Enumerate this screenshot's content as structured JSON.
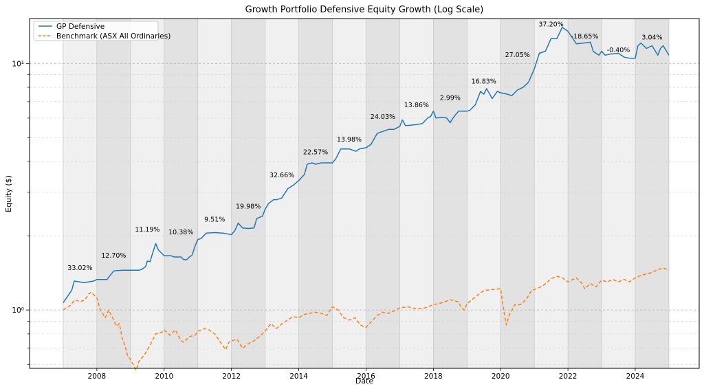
{
  "chart_data": {
    "type": "line",
    "title": "Growth Portfolio Defensive Equity Growth (Log Scale)",
    "xlabel": "Date",
    "ylabel": "Equity ($)",
    "y_scale": "log",
    "ylim": [
      0.58,
      15.2
    ],
    "xlim": [
      2006.0,
      2025.9
    ],
    "x_tick_labels": [
      "2008",
      "2010",
      "2012",
      "2014",
      "2016",
      "2018",
      "2020",
      "2022",
      "2024"
    ],
    "y_tick_labels": [
      "10⁰",
      "10¹"
    ],
    "grid": true,
    "legend_position": "top-left",
    "year_bands": [
      2007,
      2008,
      2009,
      2010,
      2011,
      2012,
      2013,
      2014,
      2015,
      2016,
      2017,
      2018,
      2019,
      2020,
      2021,
      2022,
      2023,
      2024
    ],
    "annual_returns": [
      {
        "year": 2007,
        "label": "33.02%",
        "y": 1.45
      },
      {
        "year": 2008,
        "label": "12.70%",
        "y": 1.63
      },
      {
        "year": 2009,
        "label": "11.19%",
        "y": 2.08
      },
      {
        "year": 2010,
        "label": "10.38%",
        "y": 2.03
      },
      {
        "year": 2011,
        "label": "9.51%",
        "y": 2.28
      },
      {
        "year": 2012,
        "label": "19.98%",
        "y": 2.58
      },
      {
        "year": 2013,
        "label": "32.66%",
        "y": 3.45
      },
      {
        "year": 2014,
        "label": "22.57%",
        "y": 4.28
      },
      {
        "year": 2015,
        "label": "13.98%",
        "y": 4.82
      },
      {
        "year": 2016,
        "label": "24.03%",
        "y": 5.95
      },
      {
        "year": 2017,
        "label": "13.86%",
        "y": 6.65
      },
      {
        "year": 2018,
        "label": "2.99%",
        "y": 7.1
      },
      {
        "year": 2019,
        "label": "16.83%",
        "y": 8.3
      },
      {
        "year": 2020,
        "label": "27.05%",
        "y": 10.6
      },
      {
        "year": 2021,
        "label": "37.20%",
        "y": 14.1
      },
      {
        "year": 2022,
        "label": "-18.65%",
        "y": 12.6
      },
      {
        "year": 2023,
        "label": "-0.40%",
        "y": 11.1
      },
      {
        "year": 2024,
        "label": "3.04%",
        "y": 12.5
      }
    ],
    "series": [
      {
        "name": "GP Defensive",
        "color": "#1f77b4",
        "style": "solid",
        "x": [
          2007.0,
          2007.25,
          2007.33,
          2007.5,
          2007.6,
          2007.75,
          2007.9,
          2008.0,
          2008.1,
          2008.25,
          2008.3,
          2008.5,
          2008.75,
          2009.0,
          2009.25,
          2009.33,
          2009.45,
          2009.5,
          2009.58,
          2009.67,
          2009.75,
          2009.83,
          2010.0,
          2010.2,
          2010.3,
          2010.5,
          2010.58,
          2010.67,
          2010.75,
          2010.83,
          2010.92,
          2011.0,
          2011.1,
          2011.25,
          2011.5,
          2011.75,
          2012.0,
          2012.1,
          2012.2,
          2012.33,
          2012.5,
          2012.67,
          2012.75,
          2012.92,
          2013.0,
          2013.1,
          2013.25,
          2013.35,
          2013.5,
          2013.67,
          2013.83,
          2014.0,
          2014.17,
          2014.25,
          2014.4,
          2014.5,
          2014.67,
          2014.83,
          2015.0,
          2015.1,
          2015.25,
          2015.5,
          2015.7,
          2015.8,
          2016.0,
          2016.15,
          2016.33,
          2016.5,
          2016.67,
          2016.83,
          2017.0,
          2017.08,
          2017.17,
          2017.25,
          2017.5,
          2017.67,
          2017.83,
          2017.92,
          2018.0,
          2018.08,
          2018.25,
          2018.4,
          2018.5,
          2018.6,
          2018.75,
          2019.0,
          2019.08,
          2019.25,
          2019.4,
          2019.5,
          2019.58,
          2019.75,
          2019.9,
          2020.0,
          2020.2,
          2020.33,
          2020.5,
          2020.67,
          2020.83,
          2021.0,
          2021.15,
          2021.33,
          2021.5,
          2021.67,
          2021.83,
          2022.0,
          2022.25,
          2022.5,
          2022.67,
          2022.75,
          2022.83,
          2022.92,
          2023.0,
          2023.1,
          2023.25,
          2023.5,
          2023.67,
          2023.83,
          2024.0,
          2024.08,
          2024.17,
          2024.33,
          2024.5,
          2024.67,
          2024.75,
          2024.83,
          2025.0
        ],
        "values": [
          1.07,
          1.2,
          1.31,
          1.3,
          1.29,
          1.3,
          1.31,
          1.33,
          1.33,
          1.33,
          1.33,
          1.44,
          1.45,
          1.45,
          1.45,
          1.46,
          1.5,
          1.58,
          1.57,
          1.72,
          1.86,
          1.75,
          1.66,
          1.66,
          1.64,
          1.64,
          1.6,
          1.6,
          1.64,
          1.67,
          1.82,
          1.93,
          1.95,
          2.05,
          2.06,
          2.05,
          2.02,
          2.1,
          2.25,
          2.15,
          2.14,
          2.15,
          2.35,
          2.4,
          2.56,
          2.7,
          2.8,
          2.8,
          2.85,
          3.1,
          3.2,
          3.35,
          3.55,
          3.9,
          3.95,
          3.9,
          3.95,
          3.95,
          3.95,
          4.1,
          4.5,
          4.5,
          4.4,
          4.5,
          4.55,
          4.7,
          5.2,
          5.3,
          5.4,
          5.4,
          5.55,
          5.9,
          5.6,
          5.6,
          5.65,
          5.7,
          6.0,
          6.1,
          6.4,
          6.0,
          6.05,
          6.0,
          5.75,
          6.05,
          6.4,
          6.4,
          6.45,
          6.8,
          7.7,
          7.5,
          7.9,
          7.2,
          7.7,
          7.6,
          7.5,
          7.4,
          7.8,
          8.0,
          8.4,
          9.5,
          11.0,
          11.2,
          12.6,
          12.6,
          14.0,
          13.5,
          12.0,
          12.1,
          12.2,
          11.2,
          11.0,
          10.8,
          11.2,
          10.8,
          10.9,
          11.0,
          10.6,
          10.5,
          10.5,
          11.8,
          12.1,
          11.5,
          11.8,
          10.8,
          11.5,
          11.8,
          10.8
        ]
      },
      {
        "name": "Benchmark (ASX All Ordinaries)",
        "color": "#ff7f0e",
        "style": "dashed",
        "x": [
          2007.0,
          2007.2,
          2007.35,
          2007.5,
          2007.65,
          2007.75,
          2007.83,
          2008.0,
          2008.1,
          2008.17,
          2008.25,
          2008.35,
          2008.5,
          2008.58,
          2008.67,
          2008.75,
          2008.83,
          2008.92,
          2009.0,
          2009.08,
          2009.17,
          2009.25,
          2009.42,
          2009.58,
          2009.75,
          2009.92,
          2010.0,
          2010.17,
          2010.33,
          2010.5,
          2010.58,
          2010.75,
          2010.92,
          2011.0,
          2011.2,
          2011.33,
          2011.5,
          2011.67,
          2011.83,
          2011.92,
          2012.0,
          2012.17,
          2012.33,
          2012.5,
          2012.67,
          2012.83,
          2013.0,
          2013.17,
          2013.33,
          2013.5,
          2013.67,
          2013.83,
          2014.0,
          2014.17,
          2014.33,
          2014.5,
          2014.67,
          2014.83,
          2015.0,
          2015.17,
          2015.33,
          2015.5,
          2015.67,
          2015.83,
          2016.0,
          2016.17,
          2016.33,
          2016.5,
          2016.67,
          2016.83,
          2017.0,
          2017.25,
          2017.5,
          2017.75,
          2018.0,
          2018.25,
          2018.5,
          2018.75,
          2018.83,
          2018.92,
          2019.0,
          2019.25,
          2019.5,
          2019.75,
          2020.0,
          2020.08,
          2020.17,
          2020.25,
          2020.42,
          2020.58,
          2020.75,
          2020.92,
          2021.0,
          2021.25,
          2021.5,
          2021.67,
          2021.83,
          2022.0,
          2022.25,
          2022.42,
          2022.5,
          2022.67,
          2022.83,
          2023.0,
          2023.17,
          2023.33,
          2023.5,
          2023.67,
          2023.83,
          2024.0,
          2024.17,
          2024.33,
          2024.5,
          2024.67,
          2024.83,
          2025.0
        ],
        "values": [
          1.0,
          1.04,
          1.1,
          1.08,
          1.1,
          1.16,
          1.18,
          1.12,
          1.0,
          0.97,
          0.93,
          1.0,
          0.91,
          0.86,
          0.88,
          0.77,
          0.72,
          0.65,
          0.63,
          0.6,
          0.57,
          0.62,
          0.66,
          0.72,
          0.8,
          0.81,
          0.83,
          0.79,
          0.83,
          0.75,
          0.74,
          0.78,
          0.79,
          0.82,
          0.84,
          0.83,
          0.8,
          0.74,
          0.69,
          0.74,
          0.75,
          0.76,
          0.7,
          0.73,
          0.75,
          0.78,
          0.82,
          0.88,
          0.84,
          0.88,
          0.91,
          0.94,
          0.93,
          0.96,
          0.97,
          0.98,
          0.97,
          0.95,
          1.03,
          1.0,
          0.93,
          0.91,
          0.93,
          0.87,
          0.85,
          0.9,
          0.95,
          0.98,
          0.97,
          0.99,
          1.02,
          1.03,
          1.01,
          1.02,
          1.05,
          1.07,
          1.1,
          1.08,
          1.02,
          1.0,
          1.06,
          1.13,
          1.2,
          1.21,
          1.22,
          1.02,
          0.87,
          0.95,
          1.05,
          1.05,
          1.1,
          1.2,
          1.21,
          1.25,
          1.34,
          1.37,
          1.35,
          1.3,
          1.35,
          1.28,
          1.22,
          1.28,
          1.24,
          1.32,
          1.3,
          1.33,
          1.3,
          1.33,
          1.3,
          1.35,
          1.38,
          1.4,
          1.42,
          1.46,
          1.48,
          1.45
        ]
      }
    ]
  }
}
